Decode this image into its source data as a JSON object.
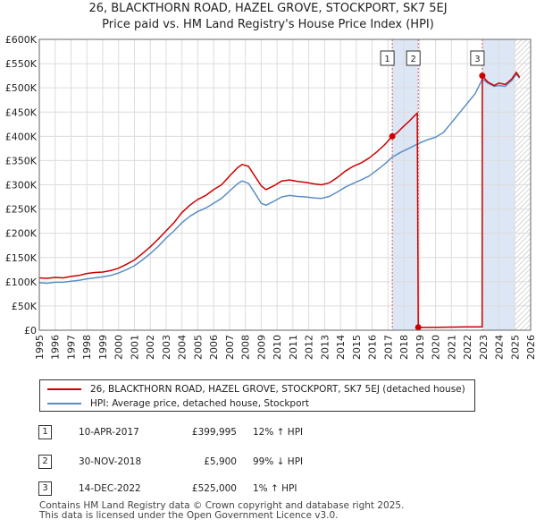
{
  "chart_data": {
    "type": "line",
    "title": "26, BLACKTHORN ROAD, HAZEL GROVE, STOCKPORT, SK7 5EJ",
    "subtitle": "Price paid vs. HM Land Registry's House Price Index (HPI)",
    "xlabel": "",
    "ylabel": "",
    "xlim": [
      1995,
      2026
    ],
    "ylim": [
      0,
      600000
    ],
    "x_ticks": [
      "1995",
      "1996",
      "1997",
      "1998",
      "1999",
      "2000",
      "2001",
      "2002",
      "2003",
      "2004",
      "2005",
      "2006",
      "2007",
      "2008",
      "2009",
      "2010",
      "2011",
      "2012",
      "2013",
      "2014",
      "2015",
      "2016",
      "2017",
      "2018",
      "2019",
      "2020",
      "2021",
      "2022",
      "2023",
      "2024",
      "2025",
      "2026"
    ],
    "y_ticks": [
      {
        "value": 0,
        "label": "£0"
      },
      {
        "value": 50000,
        "label": "£50K"
      },
      {
        "value": 100000,
        "label": "£100K"
      },
      {
        "value": 150000,
        "label": "£150K"
      },
      {
        "value": 200000,
        "label": "£200K"
      },
      {
        "value": 250000,
        "label": "£250K"
      },
      {
        "value": 300000,
        "label": "£300K"
      },
      {
        "value": 350000,
        "label": "£350K"
      },
      {
        "value": 400000,
        "label": "£400K"
      },
      {
        "value": 450000,
        "label": "£450K"
      },
      {
        "value": 500000,
        "label": "£500K"
      },
      {
        "value": 550000,
        "label": "£550K"
      },
      {
        "value": 600000,
        "label": "£600K"
      }
    ],
    "grid": true,
    "legend_position": "bottom",
    "series": [
      {
        "name": "26, BLACKTHORN ROAD, HAZEL GROVE, STOCKPORT, SK7 5EJ (detached house)",
        "color": "#cc0000",
        "points": [
          [
            1995.0,
            108000
          ],
          [
            1995.5,
            107000
          ],
          [
            1996.0,
            109000
          ],
          [
            1996.5,
            108000
          ],
          [
            1997.0,
            111000
          ],
          [
            1997.5,
            113000
          ],
          [
            1998.0,
            117000
          ],
          [
            1998.5,
            119000
          ],
          [
            1999.0,
            120000
          ],
          [
            1999.5,
            123000
          ],
          [
            2000.0,
            128000
          ],
          [
            2000.5,
            136000
          ],
          [
            2001.0,
            145000
          ],
          [
            2001.5,
            158000
          ],
          [
            2002.0,
            172000
          ],
          [
            2002.5,
            188000
          ],
          [
            2003.0,
            205000
          ],
          [
            2003.5,
            222000
          ],
          [
            2004.0,
            243000
          ],
          [
            2004.5,
            258000
          ],
          [
            2005.0,
            270000
          ],
          [
            2005.5,
            278000
          ],
          [
            2006.0,
            290000
          ],
          [
            2006.5,
            300000
          ],
          [
            2007.0,
            318000
          ],
          [
            2007.5,
            335000
          ],
          [
            2007.8,
            342000
          ],
          [
            2008.2,
            338000
          ],
          [
            2008.6,
            318000
          ],
          [
            2009.0,
            298000
          ],
          [
            2009.3,
            290000
          ],
          [
            2009.8,
            298000
          ],
          [
            2010.3,
            308000
          ],
          [
            2010.8,
            310000
          ],
          [
            2011.3,
            307000
          ],
          [
            2011.8,
            305000
          ],
          [
            2012.3,
            302000
          ],
          [
            2012.8,
            300000
          ],
          [
            2013.3,
            304000
          ],
          [
            2013.8,
            315000
          ],
          [
            2014.3,
            328000
          ],
          [
            2014.8,
            338000
          ],
          [
            2015.3,
            345000
          ],
          [
            2015.8,
            355000
          ],
          [
            2016.3,
            368000
          ],
          [
            2016.8,
            383000
          ],
          [
            2017.27,
            399995
          ],
          [
            2017.6,
            408000
          ],
          [
            2017.9,
            418000
          ],
          [
            2018.3,
            430000
          ],
          [
            2018.6,
            440000
          ],
          [
            2018.85,
            448000
          ],
          [
            2018.91,
            5900
          ],
          [
            2019.5,
            6000
          ],
          [
            2020.0,
            6100
          ],
          [
            2020.5,
            6200
          ],
          [
            2021.0,
            6400
          ],
          [
            2021.5,
            6700
          ],
          [
            2022.0,
            6900
          ],
          [
            2022.5,
            7000
          ],
          [
            2022.94,
            7100
          ],
          [
            2022.95,
            525000
          ],
          [
            2023.3,
            512000
          ],
          [
            2023.7,
            505000
          ],
          [
            2024.0,
            510000
          ],
          [
            2024.4,
            507000
          ],
          [
            2024.8,
            518000
          ],
          [
            2025.1,
            532000
          ],
          [
            2025.3,
            522000
          ]
        ]
      },
      {
        "name": "HPI: Average price, detached house, Stockport",
        "color": "#5b8ec4",
        "points": [
          [
            1995.0,
            98000
          ],
          [
            1995.5,
            97000
          ],
          [
            1996.0,
            99000
          ],
          [
            1996.5,
            99000
          ],
          [
            1997.0,
            101000
          ],
          [
            1997.5,
            103000
          ],
          [
            1998.0,
            106000
          ],
          [
            1998.5,
            108000
          ],
          [
            1999.0,
            110000
          ],
          [
            1999.5,
            113000
          ],
          [
            2000.0,
            118000
          ],
          [
            2000.5,
            125000
          ],
          [
            2001.0,
            133000
          ],
          [
            2001.5,
            145000
          ],
          [
            2002.0,
            158000
          ],
          [
            2002.5,
            173000
          ],
          [
            2003.0,
            190000
          ],
          [
            2003.5,
            205000
          ],
          [
            2004.0,
            222000
          ],
          [
            2004.5,
            235000
          ],
          [
            2005.0,
            245000
          ],
          [
            2005.5,
            252000
          ],
          [
            2006.0,
            262000
          ],
          [
            2006.5,
            272000
          ],
          [
            2007.0,
            287000
          ],
          [
            2007.5,
            302000
          ],
          [
            2007.8,
            308000
          ],
          [
            2008.2,
            303000
          ],
          [
            2008.6,
            283000
          ],
          [
            2009.0,
            262000
          ],
          [
            2009.3,
            258000
          ],
          [
            2009.8,
            266000
          ],
          [
            2010.3,
            275000
          ],
          [
            2010.8,
            278000
          ],
          [
            2011.3,
            276000
          ],
          [
            2011.8,
            275000
          ],
          [
            2012.3,
            273000
          ],
          [
            2012.8,
            272000
          ],
          [
            2013.3,
            276000
          ],
          [
            2013.8,
            285000
          ],
          [
            2014.3,
            295000
          ],
          [
            2014.8,
            303000
          ],
          [
            2015.3,
            310000
          ],
          [
            2015.8,
            318000
          ],
          [
            2016.3,
            330000
          ],
          [
            2016.8,
            343000
          ],
          [
            2017.27,
            357000
          ],
          [
            2017.8,
            367000
          ],
          [
            2018.3,
            375000
          ],
          [
            2018.91,
            385000
          ],
          [
            2019.5,
            393000
          ],
          [
            2020.0,
            398000
          ],
          [
            2020.5,
            408000
          ],
          [
            2021.0,
            428000
          ],
          [
            2021.5,
            448000
          ],
          [
            2022.0,
            468000
          ],
          [
            2022.5,
            488000
          ],
          [
            2022.95,
            518000
          ],
          [
            2023.3,
            510000
          ],
          [
            2023.7,
            503000
          ],
          [
            2024.0,
            505000
          ],
          [
            2024.4,
            503000
          ],
          [
            2024.8,
            515000
          ],
          [
            2025.1,
            528000
          ],
          [
            2025.3,
            520000
          ]
        ]
      }
    ],
    "sales": [
      {
        "num": "1",
        "x": 2017.27,
        "price": 399995,
        "date": "10-APR-2017",
        "price_label": "£399,995",
        "hpi": "12% ↑ HPI"
      },
      {
        "num": "2",
        "x": 2018.91,
        "price": 5900,
        "date": "30-NOV-2018",
        "price_label": "£5,900",
        "hpi": "99% ↓ HPI"
      },
      {
        "num": "3",
        "x": 2022.95,
        "price": 525000,
        "date": "14-DEC-2022",
        "price_label": "£525,000",
        "hpi": "1% ↑ HPI"
      }
    ],
    "shaded_ranges": [
      [
        2017.27,
        2018.91
      ],
      [
        2022.95,
        2025.0
      ]
    ],
    "hatched_from": 2025.0
  },
  "legend": {
    "property": "26, BLACKTHORN ROAD, HAZEL GROVE, STOCKPORT, SK7 5EJ (detached house)",
    "hpi": "HPI: Average price, detached house, Stockport"
  },
  "footer": {
    "line1": "Contains HM Land Registry data © Crown copyright and database right 2025.",
    "line2": "This data is licensed under the Open Government Licence v3.0."
  }
}
